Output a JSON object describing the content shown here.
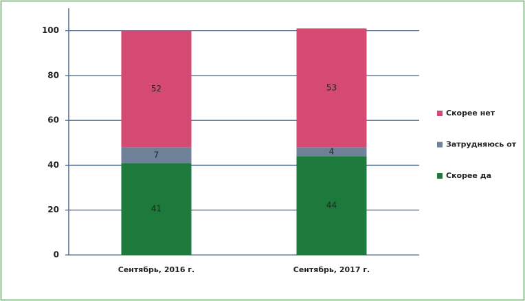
{
  "chart_data": {
    "type": "stacked_bar",
    "categories": [
      "Сентябрь, 2016 г.",
      "Сентябрь, 2017 г."
    ],
    "series": [
      {
        "name": "Скорее да",
        "color": "#1e7a3c",
        "values": [
          41,
          44
        ]
      },
      {
        "name": "Затрудняюсь от",
        "color": "#6f8199",
        "values": [
          7,
          4
        ]
      },
      {
        "name": "Скорее нет",
        "color": "#d44a72",
        "values": [
          52,
          53
        ]
      }
    ],
    "ylim": [
      0,
      110
    ],
    "yticks": [
      0,
      20,
      40,
      60,
      80,
      100
    ],
    "grid": true,
    "legend": "right"
  }
}
